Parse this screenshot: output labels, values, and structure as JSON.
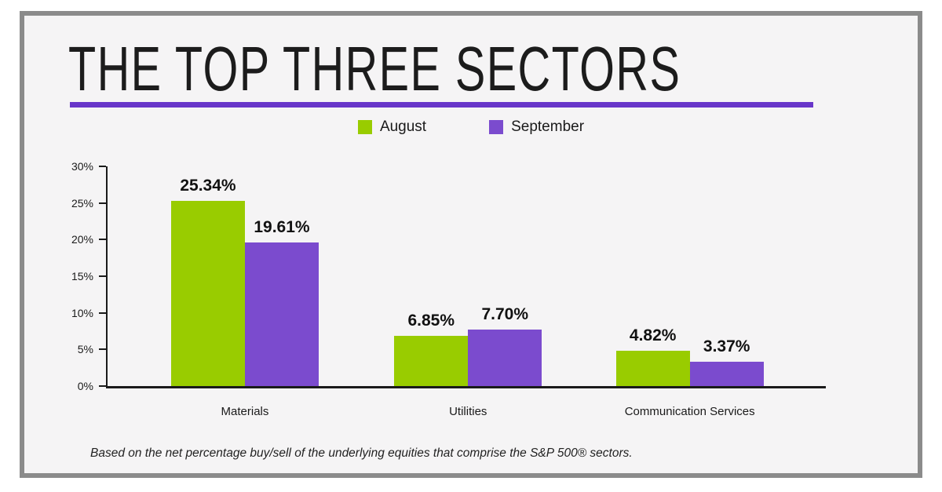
{
  "title": "THE TOP THREE SECTORS",
  "footnote": "Based on the net percentage buy/sell of the underlying equities that comprise the S&P 500® sectors.",
  "colors": {
    "august": "#99CC00",
    "september": "#7B4BCE",
    "title_underline": "#6836C9",
    "background": "#F5F4F5",
    "frame_border": "#8B8B8B",
    "axis": "#1A1A1A"
  },
  "chart_data": {
    "type": "bar",
    "categories": [
      "Materials",
      "Utilities",
      "Communication Services"
    ],
    "series": [
      {
        "name": "August",
        "color": "#99CC00",
        "values": [
          25.34,
          6.85,
          4.82
        ]
      },
      {
        "name": "September",
        "color": "#7B4BCE",
        "values": [
          19.61,
          7.7,
          3.37
        ]
      }
    ],
    "value_labels": [
      [
        "25.34%",
        "6.85%",
        "4.82%"
      ],
      [
        "19.61%",
        "7.70%",
        "3.37%"
      ]
    ],
    "yticks": [
      "0%",
      "5%",
      "10%",
      "15%",
      "20%",
      "25%",
      "30%"
    ],
    "ylim": [
      0,
      30
    ],
    "grid": false,
    "legend_position": "top-center",
    "group_centers_frac": [
      0.193,
      0.503,
      0.811
    ]
  }
}
